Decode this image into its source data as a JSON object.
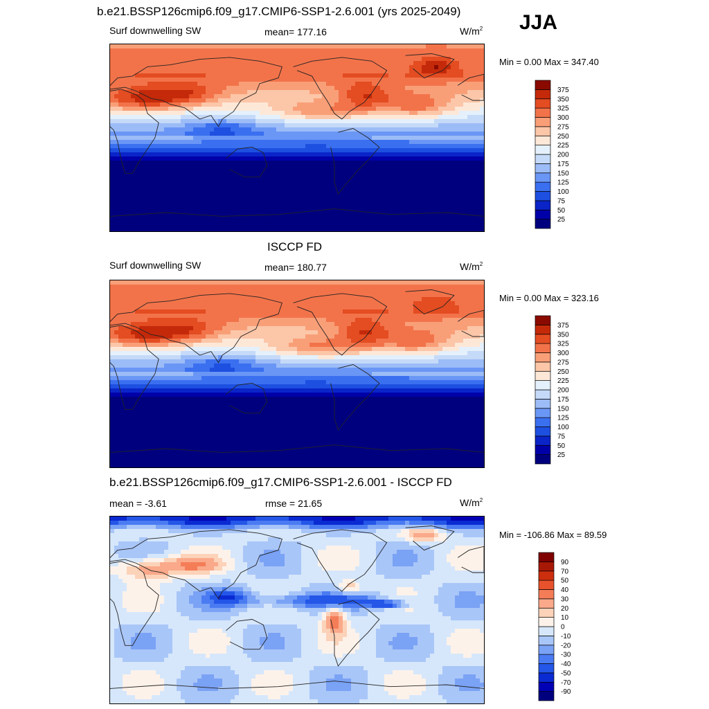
{
  "season": "JJA",
  "panels": [
    {
      "id": "model",
      "title": "b.e21.BSSP126cmip6.f09_g17.CMIP6-SSP1-2.6.001 (yrs 2025-2049)",
      "left_label": "Surf downwelling SW",
      "center_label": "mean= 177.16",
      "units": "W/m",
      "units_sup": "2",
      "minmax": "Min =    0.00 Max = 347.40"
    },
    {
      "id": "obs",
      "title": "ISCCP FD",
      "left_label": "Surf downwelling SW",
      "center_label": "mean= 180.77",
      "units": "W/m",
      "units_sup": "2",
      "minmax": "Min =    0.00 Max = 323.16"
    },
    {
      "id": "diff",
      "title": "b.e21.BSSP126cmip6.f09_g17.CMIP6-SSP1-2.6.001 - ISCCP FD",
      "left_label": "mean =  -3.61",
      "center_label": "rmse =  21.65",
      "units": "W/m",
      "units_sup": "2",
      "minmax": "Min = -106.86 Max =  89.59"
    }
  ],
  "chart_data": [
    {
      "type": "heatmap",
      "title": "b.e21.BSSP126cmip6.f09_g17.CMIP6-SSP1-2.6.001 (yrs 2025-2049)",
      "variable": "Surf downwelling SW",
      "units": "W/m2",
      "mean": 177.16,
      "min": 0.0,
      "max": 347.4,
      "colorbar_levels": [
        25,
        50,
        75,
        100,
        125,
        150,
        175,
        200,
        225,
        250,
        275,
        300,
        325,
        350,
        375
      ],
      "colorbar_colors": [
        "#00007f",
        "#0000a8",
        "#0a24c8",
        "#1d4fe0",
        "#3a6ff0",
        "#6a96f5",
        "#9cbcf7",
        "#c5daf8",
        "#e4f0fb",
        "#fde8d8",
        "#fcc6a8",
        "#f99f78",
        "#f2734a",
        "#e44c22",
        "#c42a0a",
        "#8b0a00"
      ]
    },
    {
      "type": "heatmap",
      "title": "ISCCP FD",
      "variable": "Surf downwelling SW",
      "units": "W/m2",
      "mean": 180.77,
      "min": 0.0,
      "max": 323.16,
      "colorbar_levels": [
        25,
        50,
        75,
        100,
        125,
        150,
        175,
        200,
        225,
        250,
        275,
        300,
        325,
        350,
        375
      ],
      "colorbar_colors": [
        "#00007f",
        "#0000a8",
        "#0a24c8",
        "#1d4fe0",
        "#3a6ff0",
        "#6a96f5",
        "#9cbcf7",
        "#c5daf8",
        "#e4f0fb",
        "#fde8d8",
        "#fcc6a8",
        "#f99f78",
        "#f2734a",
        "#e44c22",
        "#c42a0a",
        "#8b0a00"
      ]
    },
    {
      "type": "heatmap",
      "title": "b.e21.BSSP126cmip6.f09_g17.CMIP6-SSP1-2.6.001 - ISCCP FD",
      "units": "W/m2",
      "mean": -3.61,
      "rmse": 21.65,
      "min": -106.86,
      "max": 89.59,
      "colorbar_levels": [
        -90,
        -70,
        -50,
        -40,
        -30,
        -20,
        -10,
        0,
        10,
        20,
        30,
        40,
        50,
        70,
        90
      ],
      "colorbar_colors": [
        "#00007f",
        "#0000b4",
        "#0a2ad2",
        "#2456e8",
        "#4a7bf2",
        "#7aa2f5",
        "#a9c6f8",
        "#d6e7fb",
        "#fdf2ea",
        "#fcd2b8",
        "#faa98a",
        "#f47d58",
        "#e8522c",
        "#cc2e0e",
        "#a81806",
        "#800000"
      ]
    }
  ]
}
